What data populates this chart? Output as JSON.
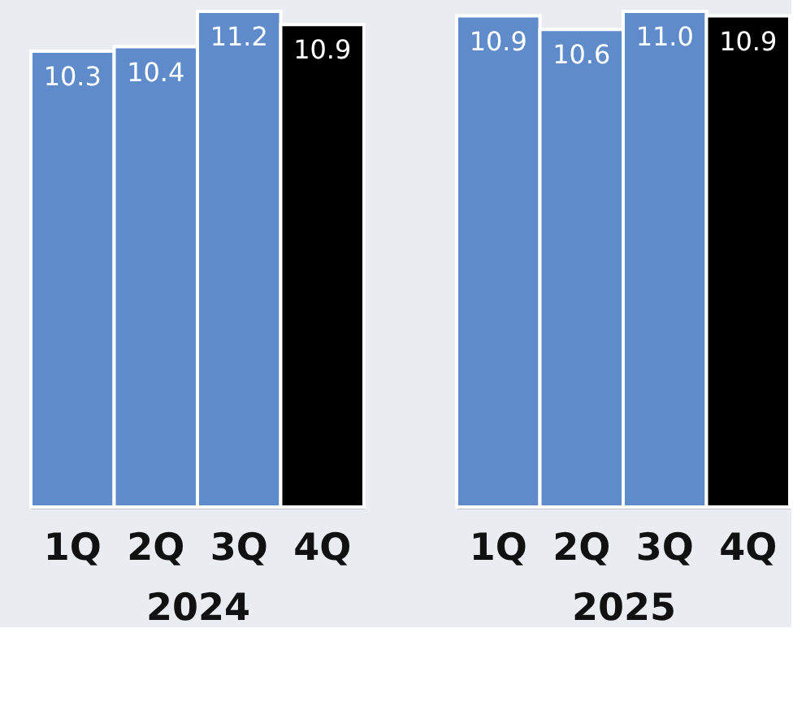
{
  "chart_data": [
    {
      "type": "bar",
      "xlabel": "2024",
      "categories": [
        "1Q",
        "2Q",
        "3Q",
        "4Q"
      ],
      "values": [
        10.3,
        10.4,
        11.2,
        10.9
      ],
      "value_labels": [
        "10.3",
        "10.4",
        "11.2",
        "10.9"
      ],
      "colors": [
        "#5f8bcb",
        "#5f8bcb",
        "#5f8bcb",
        "#000000"
      ],
      "tick_labels": "x"
    },
    {
      "type": "bar",
      "xlabel": "2025",
      "categories": [
        "1Q",
        "2Q",
        "3Q",
        "4Q"
      ],
      "values": [
        10.9,
        10.6,
        11.0,
        10.9
      ],
      "value_labels": [
        "10.9",
        "10.6",
        "11.0",
        "10.9"
      ],
      "colors": [
        "#5f8bcb",
        "#5f8bcb",
        "#5f8bcb",
        "#000000"
      ],
      "tick_labels": "x"
    }
  ]
}
